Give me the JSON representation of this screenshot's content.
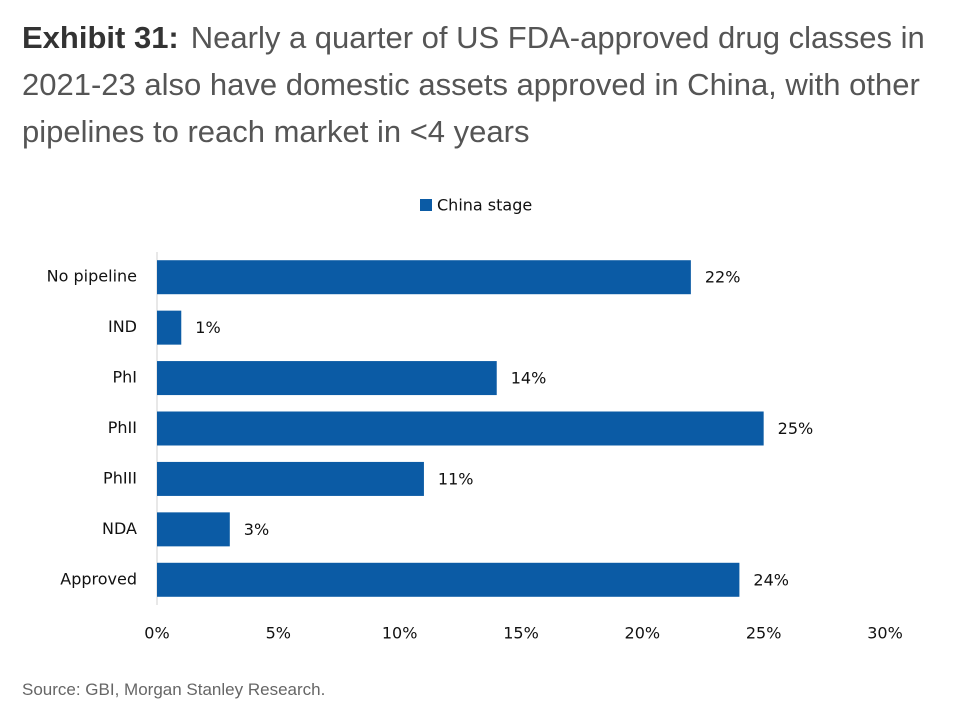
{
  "exhibit": "Exhibit 31:",
  "chart_data": {
    "type": "hbar",
    "title": "Nearly a quarter of US FDA-approved drug classes in 2021-23 also have domestic assets approved in China, with other pipelines to reach market in <4 years",
    "categories": [
      "No pipeline",
      "IND",
      "PhI",
      "PhII",
      "PhIII",
      "NDA",
      "Approved"
    ],
    "series": [
      {
        "name": "China stage",
        "color": "#0b5ba5",
        "values": [
          22,
          1,
          14,
          25,
          11,
          3,
          24
        ],
        "value_labels": [
          "22%",
          "1%",
          "14%",
          "25%",
          "11%",
          "3%",
          "24%"
        ]
      }
    ],
    "xlim": [
      0,
      30
    ],
    "xticks": [
      {
        "value": 0,
        "label": "0%"
      },
      {
        "value": 5,
        "label": "5%"
      },
      {
        "value": 10,
        "label": "10%"
      },
      {
        "value": 15,
        "label": "15%"
      },
      {
        "value": 20,
        "label": "20%"
      },
      {
        "value": 25,
        "label": "25%"
      },
      {
        "value": 30,
        "label": "30%"
      }
    ],
    "legend": "top",
    "source": "Source: GBI, Morgan Stanley Research."
  }
}
